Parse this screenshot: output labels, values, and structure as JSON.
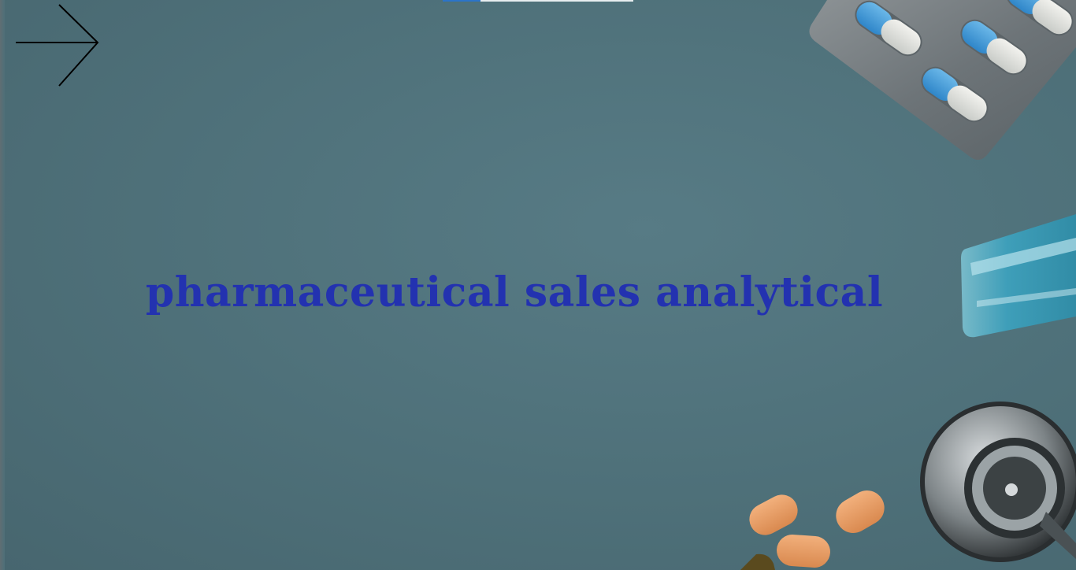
{
  "slide": {
    "title": "pharmaceutical sales analytical"
  },
  "navigation": {
    "next_icon": "arrow-right-icon"
  },
  "colors": {
    "background": "#4e6f78",
    "title": "#2332b0",
    "progress_accent": "#2b74c8",
    "progress_track": "#e8eef0"
  },
  "decorations": {
    "blister_pack": "capsule-blister-pack-icon",
    "vial": "glass-vial-icon",
    "stethoscope": "stethoscope-icon",
    "tablets": "tablet-pills-icon"
  }
}
